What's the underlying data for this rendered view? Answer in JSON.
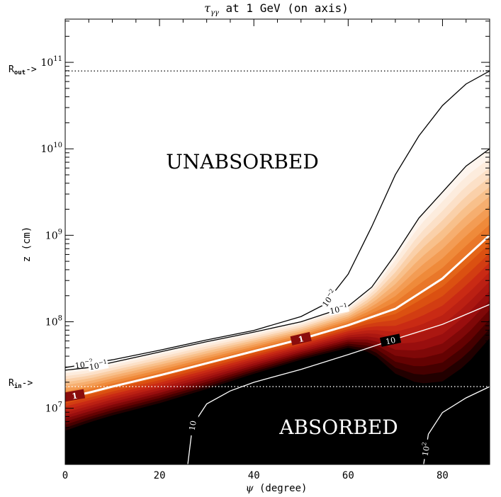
{
  "chart_data": {
    "type": "area",
    "title_main": "τ",
    "title_sub": "γγ",
    "title_rest": " at 1 GeV (on axis)",
    "xlabel_symbol": "ψ",
    "xlabel_rest": " (degree)",
    "ylabel": "z (cm)",
    "y_scale": "log",
    "xlim": [
      0,
      90
    ],
    "ylim_log10": [
      6.35,
      11.5
    ],
    "x_ticks": [
      {
        "value": 0,
        "label": "0"
      },
      {
        "value": 20,
        "label": "20"
      },
      {
        "value": 40,
        "label": "40"
      },
      {
        "value": 60,
        "label": "60"
      },
      {
        "value": 80,
        "label": "80"
      }
    ],
    "y_ticks": [
      {
        "exp": 7,
        "base": "10",
        "sup": "7"
      },
      {
        "exp": 8,
        "base": "10",
        "sup": "8"
      },
      {
        "exp": 9,
        "base": "10",
        "sup": "9"
      },
      {
        "exp": 10,
        "base": "10",
        "sup": "10"
      },
      {
        "exp": 11,
        "base": "10",
        "sup": "11"
      }
    ],
    "reference_lines": [
      {
        "name": "R_out",
        "base": "R",
        "sub": "out",
        "arrow": "->",
        "log10_z": 10.9
      },
      {
        "name": "R_in",
        "base": "R",
        "sub": "in",
        "arrow": "->",
        "log10_z": 7.25
      }
    ],
    "region_labels": {
      "unabsorbed": "UNABSORBED",
      "absorbed": "ABSORBED"
    },
    "contours": [
      {
        "level_label_base": "10",
        "level_label_sup": "−2",
        "color": "#000000",
        "points": [
          [
            0,
            7.47
          ],
          [
            10,
            7.56
          ],
          [
            20,
            7.67
          ],
          [
            30,
            7.79
          ],
          [
            40,
            7.9
          ],
          [
            50,
            8.06
          ],
          [
            55,
            8.2
          ],
          [
            60,
            8.55
          ],
          [
            65,
            9.1
          ],
          [
            70,
            9.7
          ],
          [
            75,
            10.15
          ],
          [
            80,
            10.5
          ],
          [
            85,
            10.75
          ],
          [
            90,
            10.9
          ]
        ],
        "labels": [
          {
            "x": 4,
            "rotate": -8
          },
          {
            "x": 56,
            "rotate": -55
          }
        ]
      },
      {
        "level_label_base": "10",
        "level_label_sup": "−1",
        "color": "#000000",
        "points": [
          [
            0,
            7.44
          ],
          [
            5,
            7.47
          ],
          [
            10,
            7.53
          ],
          [
            20,
            7.65
          ],
          [
            30,
            7.77
          ],
          [
            40,
            7.88
          ],
          [
            50,
            8.0
          ],
          [
            60,
            8.18
          ],
          [
            65,
            8.4
          ],
          [
            70,
            8.78
          ],
          [
            75,
            9.2
          ],
          [
            80,
            9.5
          ],
          [
            85,
            9.8
          ],
          [
            90,
            10.0
          ]
        ],
        "labels": [
          {
            "x": 7,
            "rotate": -10
          },
          {
            "x": 58,
            "rotate": -12
          }
        ]
      },
      {
        "level_label_base": "1",
        "level_label_sup": "",
        "color": "#ffffff",
        "thick": true,
        "points": [
          [
            0,
            7.12
          ],
          [
            5,
            7.18
          ],
          [
            10,
            7.25
          ],
          [
            20,
            7.38
          ],
          [
            30,
            7.52
          ],
          [
            40,
            7.66
          ],
          [
            50,
            7.8
          ],
          [
            60,
            7.96
          ],
          [
            70,
            8.15
          ],
          [
            80,
            8.5
          ],
          [
            90,
            9.0
          ]
        ],
        "labels": [
          {
            "x": 2,
            "rotate": -10
          },
          {
            "x": 50,
            "rotate": -13
          }
        ]
      },
      {
        "level_label_base": "10",
        "level_label_sup": "",
        "color": "#ffffff",
        "points": [
          [
            26,
            6.35
          ],
          [
            27,
            6.8
          ],
          [
            30,
            7.05
          ],
          [
            35,
            7.2
          ],
          [
            40,
            7.3
          ],
          [
            50,
            7.45
          ],
          [
            60,
            7.62
          ],
          [
            70,
            7.8
          ],
          [
            80,
            7.97
          ],
          [
            90,
            8.2
          ]
        ],
        "labels": [
          {
            "x": 27,
            "rotate": -80
          },
          {
            "x": 69,
            "rotate": -12
          }
        ]
      },
      {
        "level_label_base": "10",
        "level_label_sup": "2",
        "color": "#ffffff",
        "points": [
          [
            76,
            6.35
          ],
          [
            77,
            6.7
          ],
          [
            80,
            6.95
          ],
          [
            85,
            7.12
          ],
          [
            90,
            7.25
          ]
        ],
        "labels": [
          {
            "x": 76.5,
            "rotate": -80
          }
        ]
      }
    ],
    "colormap": {
      "name": "hot",
      "levels": 22,
      "log10_tau_range": [
        -1,
        1.3
      ],
      "stops": [
        "#000000",
        "#5a0000",
        "#a01010",
        "#c82814",
        "#e05a10",
        "#f08c3c",
        "#f8bc84",
        "#fde6d2",
        "#ffffff"
      ]
    }
  }
}
